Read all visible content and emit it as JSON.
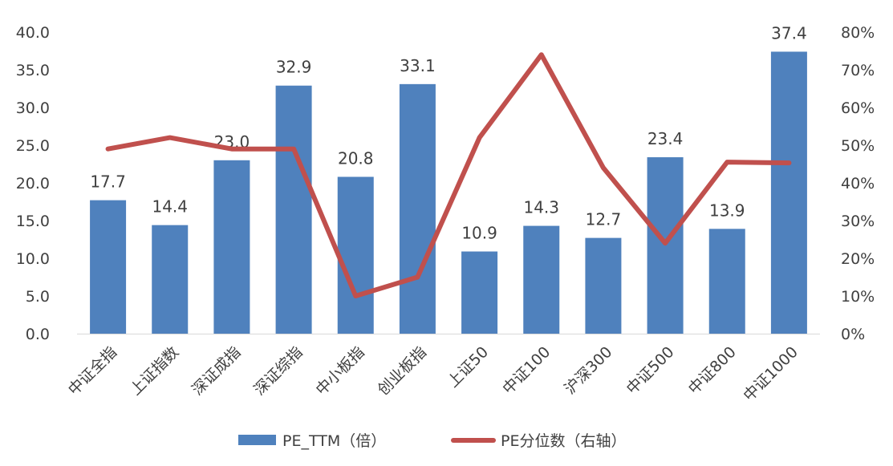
{
  "chart_data": {
    "type": "bar+line",
    "categories": [
      "中证全指",
      "上证指数",
      "深证成指",
      "深证综指",
      "中小板指",
      "创业板指",
      "上证50",
      "中证100",
      "沪深300",
      "中证500",
      "中证800",
      "中证1000"
    ],
    "series": [
      {
        "name": "PE_TTM（倍）",
        "type": "bar",
        "axis": "left",
        "color": "#4F81BD",
        "values": [
          17.7,
          14.4,
          23.0,
          32.9,
          20.8,
          33.1,
          10.9,
          14.3,
          12.7,
          23.4,
          13.9,
          37.4
        ],
        "labels": [
          "17.7",
          "14.4",
          "23.0",
          "32.9",
          "20.8",
          "33.1",
          "10.9",
          "14.3",
          "12.7",
          "23.4",
          "13.9",
          "37.4"
        ]
      },
      {
        "name": "PE分位数（右轴）",
        "type": "line",
        "axis": "right",
        "color": "#C0504D",
        "values": [
          0.49,
          0.52,
          0.49,
          0.49,
          0.1,
          0.15,
          0.52,
          0.74,
          0.44,
          0.24,
          0.455,
          0.453
        ]
      }
    ],
    "y_left": {
      "min": 0,
      "max": 40,
      "ticks": [
        "0.0",
        "5.0",
        "10.0",
        "15.0",
        "20.0",
        "25.0",
        "30.0",
        "35.0",
        "40.0"
      ]
    },
    "y_right": {
      "min": 0,
      "max": 0.8,
      "ticks": [
        "0%",
        "10%",
        "20%",
        "30%",
        "40%",
        "50%",
        "60%",
        "70%",
        "80%"
      ]
    },
    "grid": false,
    "legend": "bottom"
  }
}
